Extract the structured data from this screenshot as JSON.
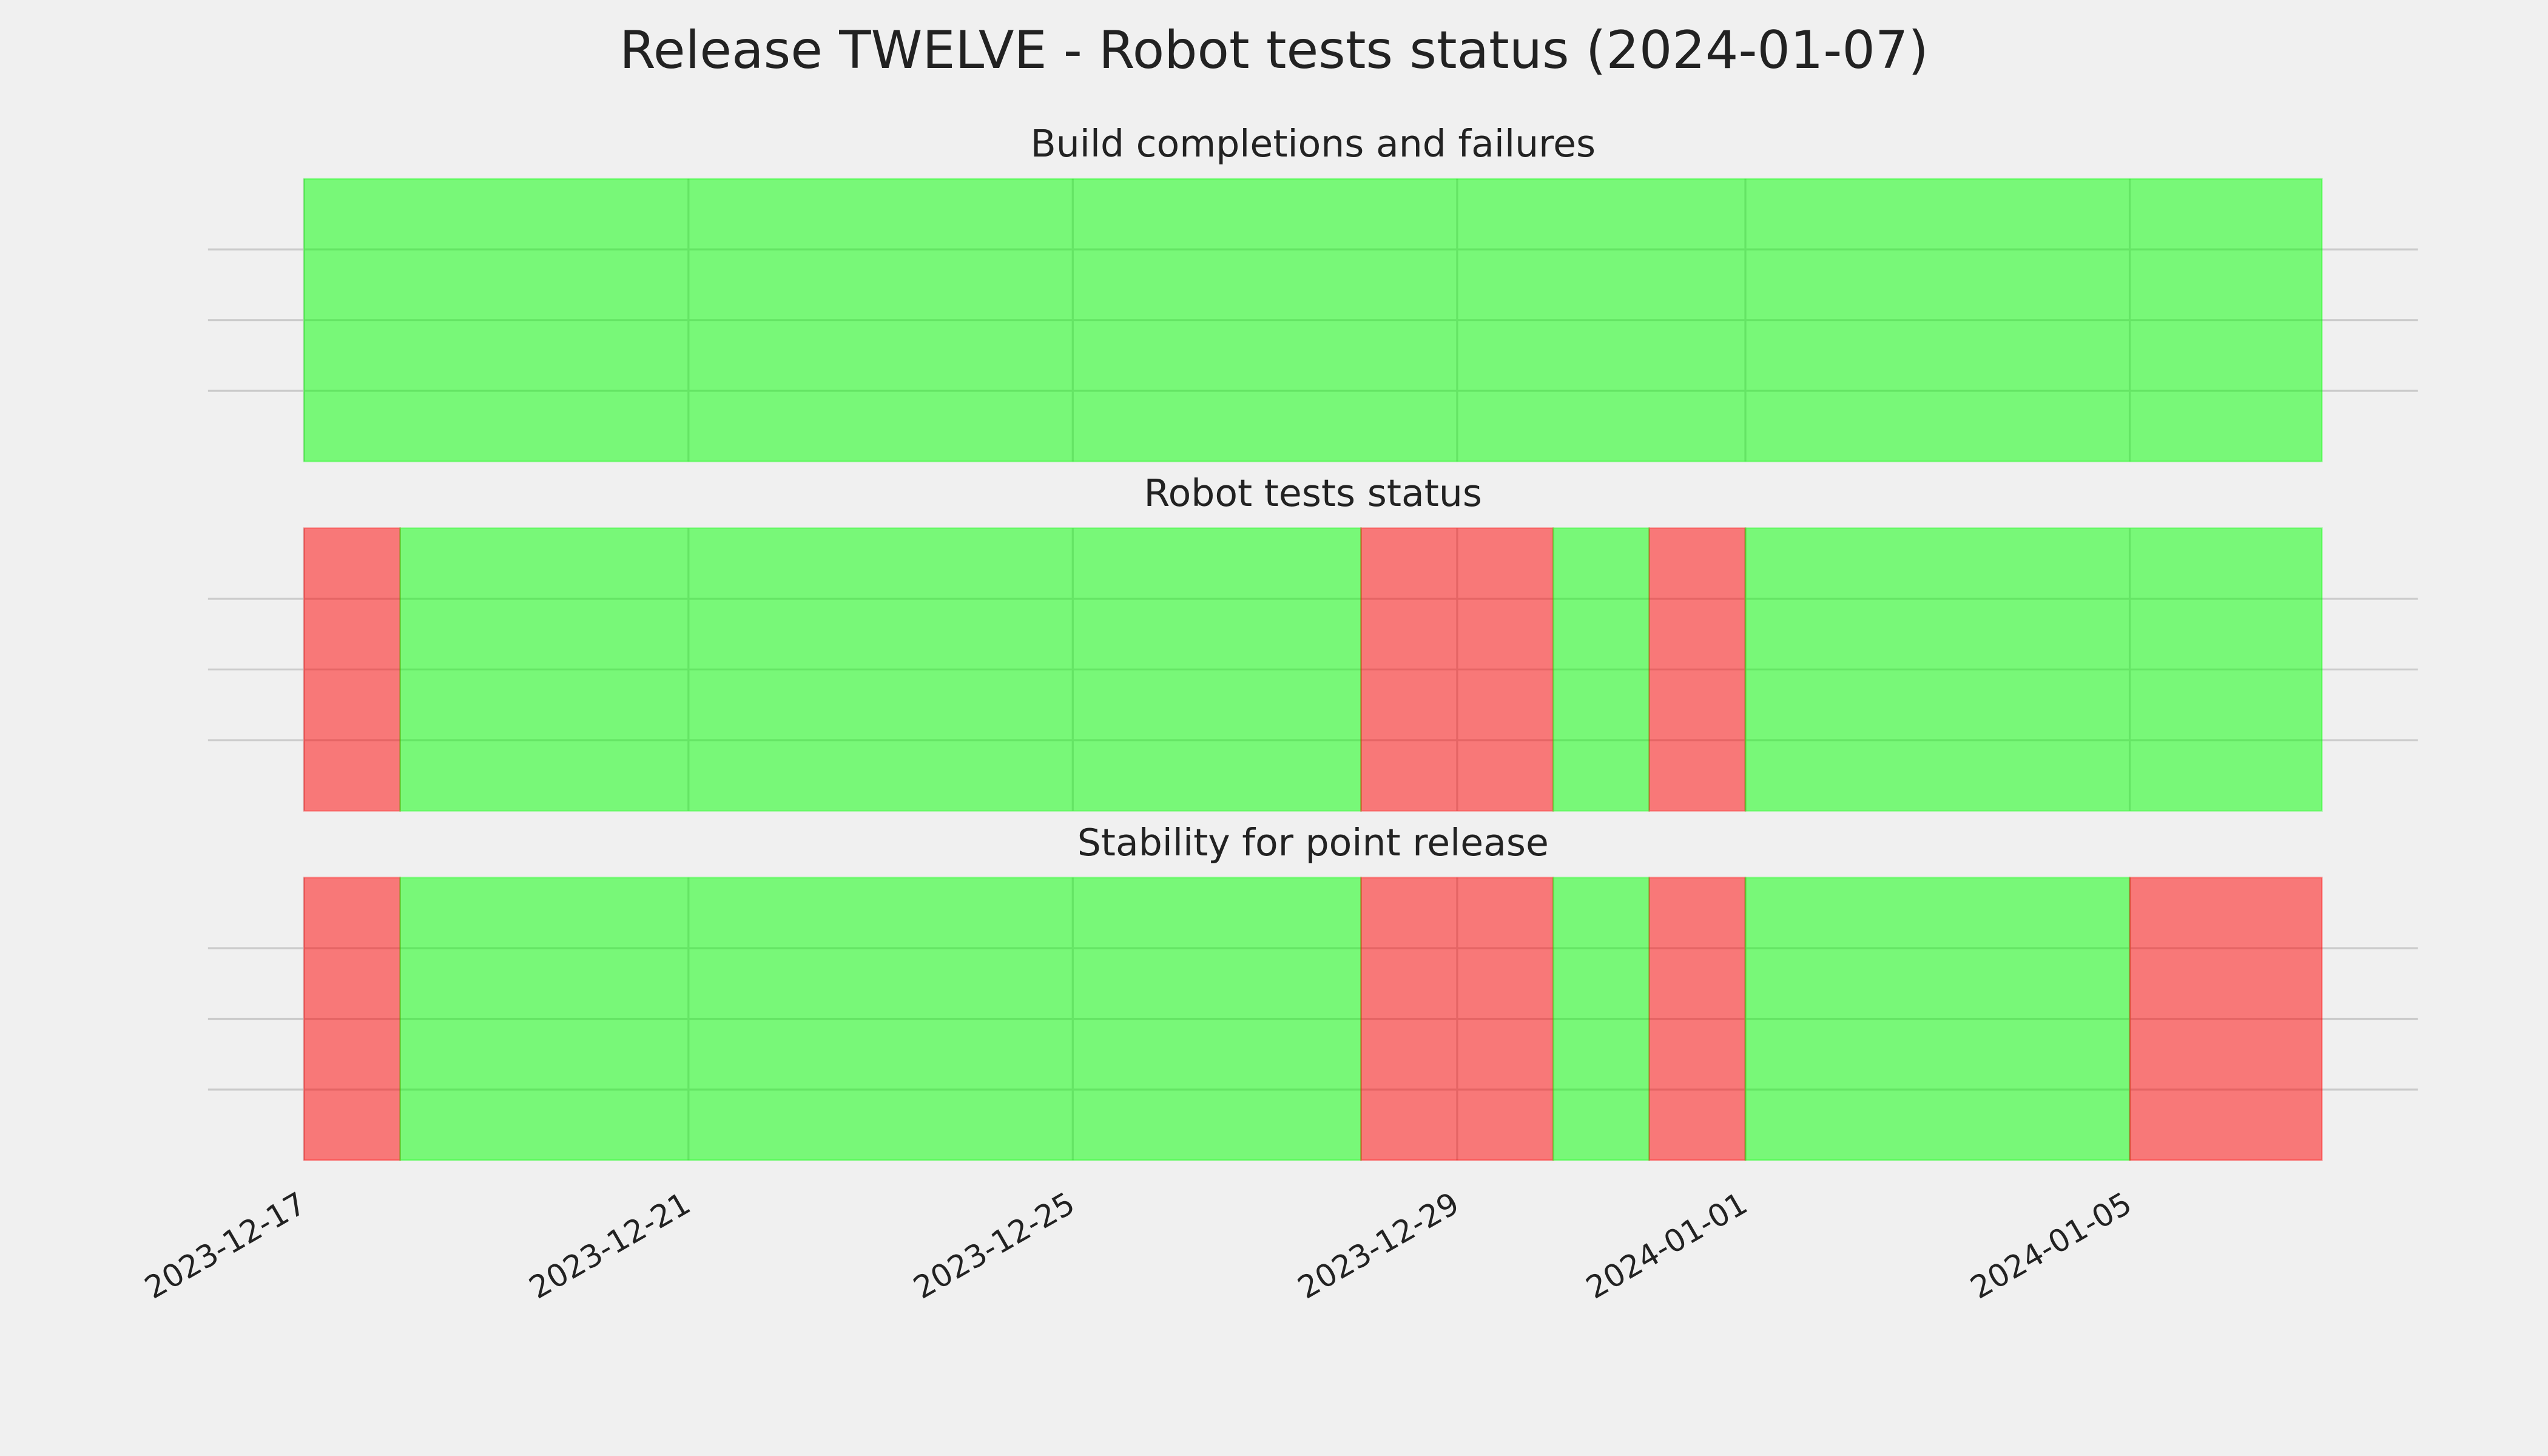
{
  "title": "Release TWELVE - Robot tests status (2024-01-07)",
  "xlim": [
    "2023-12-16",
    "2024-01-08"
  ],
  "xticks": [
    "2023-12-17",
    "2023-12-21",
    "2023-12-25",
    "2023-12-29",
    "2024-01-01",
    "2024-01-05"
  ],
  "chart_data": [
    {
      "type": "status",
      "title": "Build completions and failures",
      "x": [
        "2023-12-17",
        "2024-01-07"
      ],
      "colors": [
        "#00ff00"
      ]
    },
    {
      "type": "status",
      "title": "Robot tests status",
      "x": [
        "2023-12-17",
        "2023-12-18",
        "2023-12-28",
        "2023-12-30",
        "2023-12-31",
        "2024-01-01",
        "2024-01-07"
      ],
      "colors": [
        "#ff0000",
        "#00ff00",
        "#ff0000",
        "#00ff00",
        "#ff0000",
        "#00ff00"
      ]
    },
    {
      "type": "status",
      "title": "Stability for point release",
      "x": [
        "2023-12-17",
        "2023-12-18",
        "2023-12-28",
        "2023-12-30",
        "2023-12-31",
        "2024-01-01",
        "2024-01-05",
        "2024-01-07"
      ],
      "colors": [
        "#ff0000",
        "#00ff00",
        "#ff0000",
        "#00ff00",
        "#ff0000",
        "#00ff00",
        "#ff0000"
      ]
    }
  ]
}
